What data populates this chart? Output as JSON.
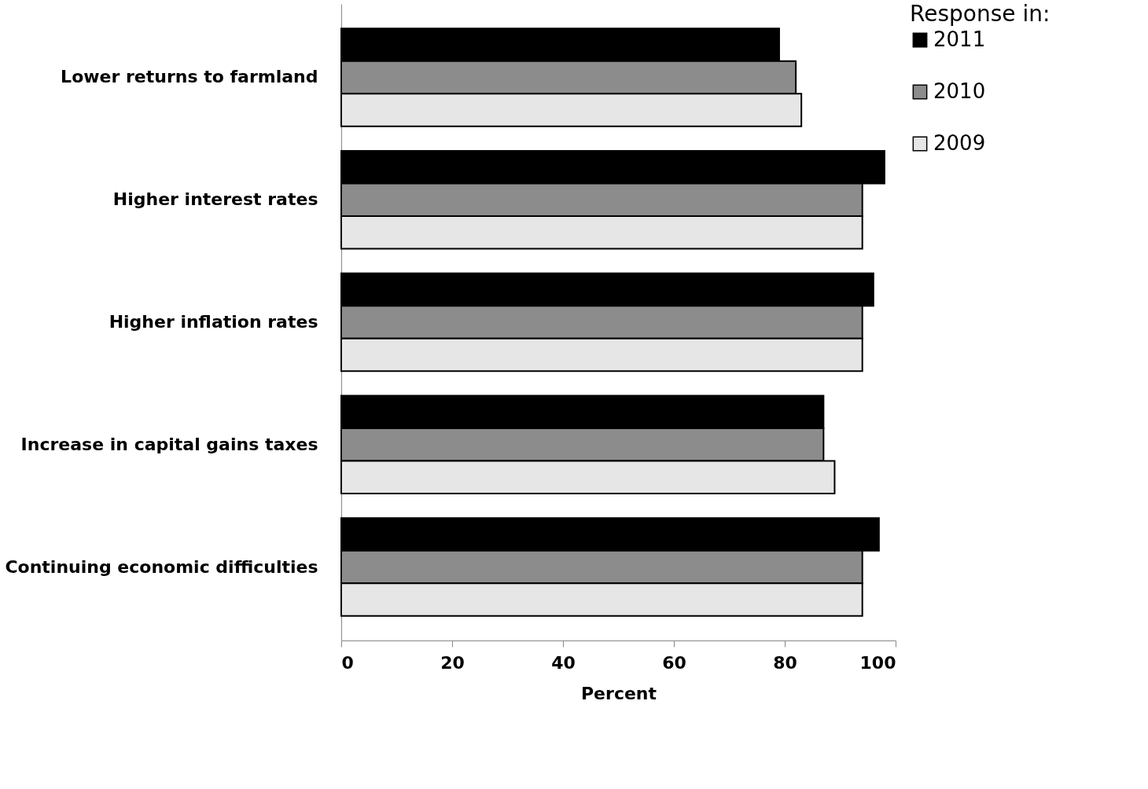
{
  "chart_data": {
    "type": "bar",
    "orientation": "horizontal",
    "categories": [
      "Lower returns to farmland",
      "Higher interest rates",
      "Higher inflation rates",
      "Increase in capital gains taxes",
      "Continuing economic difficulties"
    ],
    "series": [
      {
        "name": "2011",
        "color": "#000000",
        "values": [
          79,
          98,
          96,
          87,
          97
        ]
      },
      {
        "name": "2010",
        "color": "#8c8c8c",
        "values": [
          82,
          94,
          94,
          87,
          94
        ]
      },
      {
        "name": "2009",
        "color": "#e6e6e6",
        "values": [
          83,
          94,
          94,
          89,
          94
        ]
      }
    ],
    "xlim": [
      0,
      100
    ],
    "xticks": [
      0,
      20,
      40,
      60,
      80,
      100
    ],
    "xlabel": "Percent",
    "legend_title": "Response in:",
    "legend": "right",
    "grid": false
  }
}
